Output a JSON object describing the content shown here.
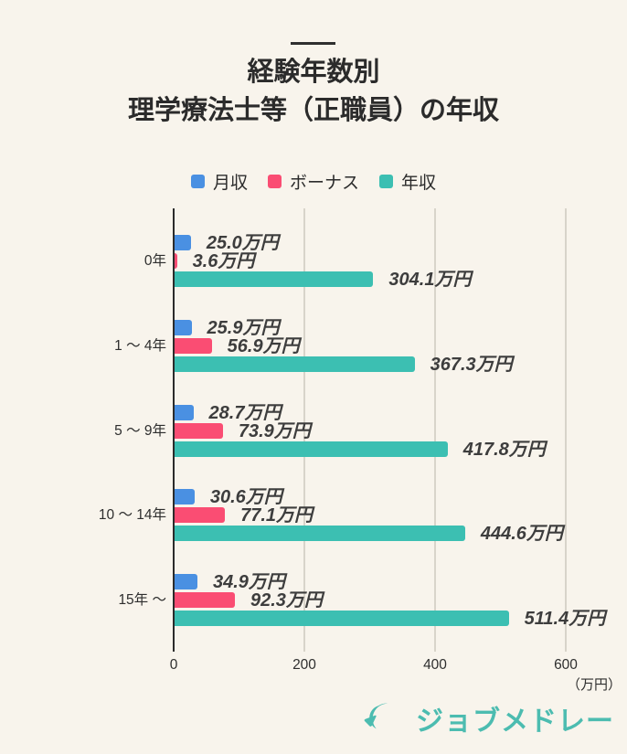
{
  "title": {
    "line1": "経験年数別",
    "line2": "理学療法士等（正職員）の年収"
  },
  "chart_data": {
    "type": "bar",
    "orientation": "horizontal",
    "title": "経験年数別 理学療法士等（正職員）の年収",
    "categories": [
      "0年",
      "1 〜 4年",
      "5 〜 9年",
      "10 〜 14年",
      "15年 〜"
    ],
    "series": [
      {
        "name": "月収",
        "color": "#4a90e2",
        "values": [
          25.0,
          25.9,
          28.7,
          30.6,
          34.9
        ]
      },
      {
        "name": "ボーナス",
        "color": "#fa4d73",
        "values": [
          3.6,
          56.9,
          73.9,
          77.1,
          92.3
        ]
      },
      {
        "name": "年収",
        "color": "#3cbfb2",
        "values": [
          304.1,
          367.3,
          417.8,
          444.6,
          511.4
        ]
      }
    ],
    "value_suffix": "万円",
    "value_decimals": 1,
    "xticks": [
      0,
      200,
      400,
      600
    ],
    "xlim": [
      0,
      600
    ],
    "axis_unit": "（万円）",
    "grid": true,
    "legend_position": "top"
  },
  "colors": {
    "background": "#f8f4ec",
    "axis": "#2b2b2b",
    "gridline": "#d8d4ca",
    "text": "#2e2e2e",
    "value_label": "#3d3d3d"
  },
  "logo": {
    "text": "ジョブメドレー",
    "color": "#4cbcb0"
  }
}
